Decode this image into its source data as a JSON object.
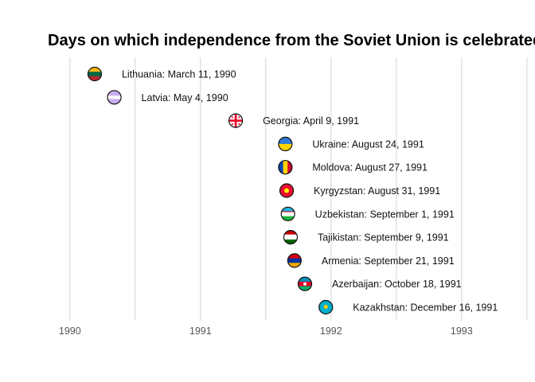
{
  "chart_data": {
    "type": "scatter",
    "title": "Days on which independence from the Soviet Union is celebrated",
    "xlabel": "",
    "ylabel": "",
    "xlim": [
      1989.8,
      1993.55
    ],
    "x_ticks": [
      {
        "value": 1990,
        "label": "1990"
      },
      {
        "value": 1991,
        "label": "1991"
      },
      {
        "value": 1992,
        "label": "1992"
      },
      {
        "value": 1993,
        "label": "1993"
      }
    ],
    "grid": true,
    "legend": "none",
    "points": [
      {
        "country": "Lithuania",
        "x": 1990.19,
        "date": "1990-03-11",
        "label": "Lithuania: March 11, 1990",
        "flag": "lithuania-flag",
        "colors": [
          "#fdb913",
          "#006a44",
          "#c1272d"
        ]
      },
      {
        "country": "Latvia",
        "x": 1990.34,
        "date": "1990-05-04",
        "label": "Latvia: May 4, 1990",
        "flag": "latvia-flag",
        "colors": [
          "#c7aef0",
          "#ffffff",
          "#c7aef0"
        ]
      },
      {
        "country": "Georgia",
        "x": 1991.27,
        "date": "1991-04-09",
        "label": "Georgia: April 9, 1991",
        "flag": "georgia-flag",
        "colors": [
          "#ffffff",
          "#e8112d"
        ]
      },
      {
        "country": "Ukraine",
        "x": 1991.65,
        "date": "1991-08-24",
        "label": "Ukraine: August 24, 1991",
        "flag": "ukraine-flag",
        "colors": [
          "#2e7ad9",
          "#ffd500"
        ]
      },
      {
        "country": "Moldova",
        "x": 1991.65,
        "date": "1991-08-27",
        "label": "Moldova: August 27, 1991",
        "flag": "moldova-flag",
        "colors": [
          "#0046ae",
          "#ffd200",
          "#cc092f"
        ]
      },
      {
        "country": "Kyrgyzstan",
        "x": 1991.66,
        "date": "1991-08-31",
        "label": "Kyrgyzstan: August 31, 1991",
        "flag": "kyrgyzstan-flag",
        "colors": [
          "#e8112d",
          "#ffef00"
        ]
      },
      {
        "country": "Uzbekistan",
        "x": 1991.67,
        "date": "1991-09-01",
        "label": "Uzbekistan: September 1, 1991",
        "flag": "uzbekistan-flag",
        "colors": [
          "#1eb5e6",
          "#ffffff",
          "#1eb53a"
        ]
      },
      {
        "country": "Tajikistan",
        "x": 1991.69,
        "date": "1991-09-09",
        "label": "Tajikistan: September 9, 1991",
        "flag": "tajikistan-flag",
        "colors": [
          "#cc0000",
          "#ffffff",
          "#006600"
        ]
      },
      {
        "country": "Armenia",
        "x": 1991.72,
        "date": "1991-09-21",
        "label": "Armenia: September 21, 1991",
        "flag": "armenia-flag",
        "colors": [
          "#d90012",
          "#0033a0",
          "#f2a800"
        ]
      },
      {
        "country": "Azerbaijan",
        "x": 1991.8,
        "date": "1991-10-18",
        "label": "Azerbaijan: October 18, 1991",
        "flag": "azerbaijan-flag",
        "colors": [
          "#0092bc",
          "#e4002b",
          "#00af66"
        ]
      },
      {
        "country": "Kazakhstan",
        "x": 1991.96,
        "date": "1991-12-16",
        "label": "Kazakhstan: December 16, 1991",
        "flag": "kazakhstan-flag",
        "colors": [
          "#00afca",
          "#fec50c"
        ]
      }
    ]
  }
}
